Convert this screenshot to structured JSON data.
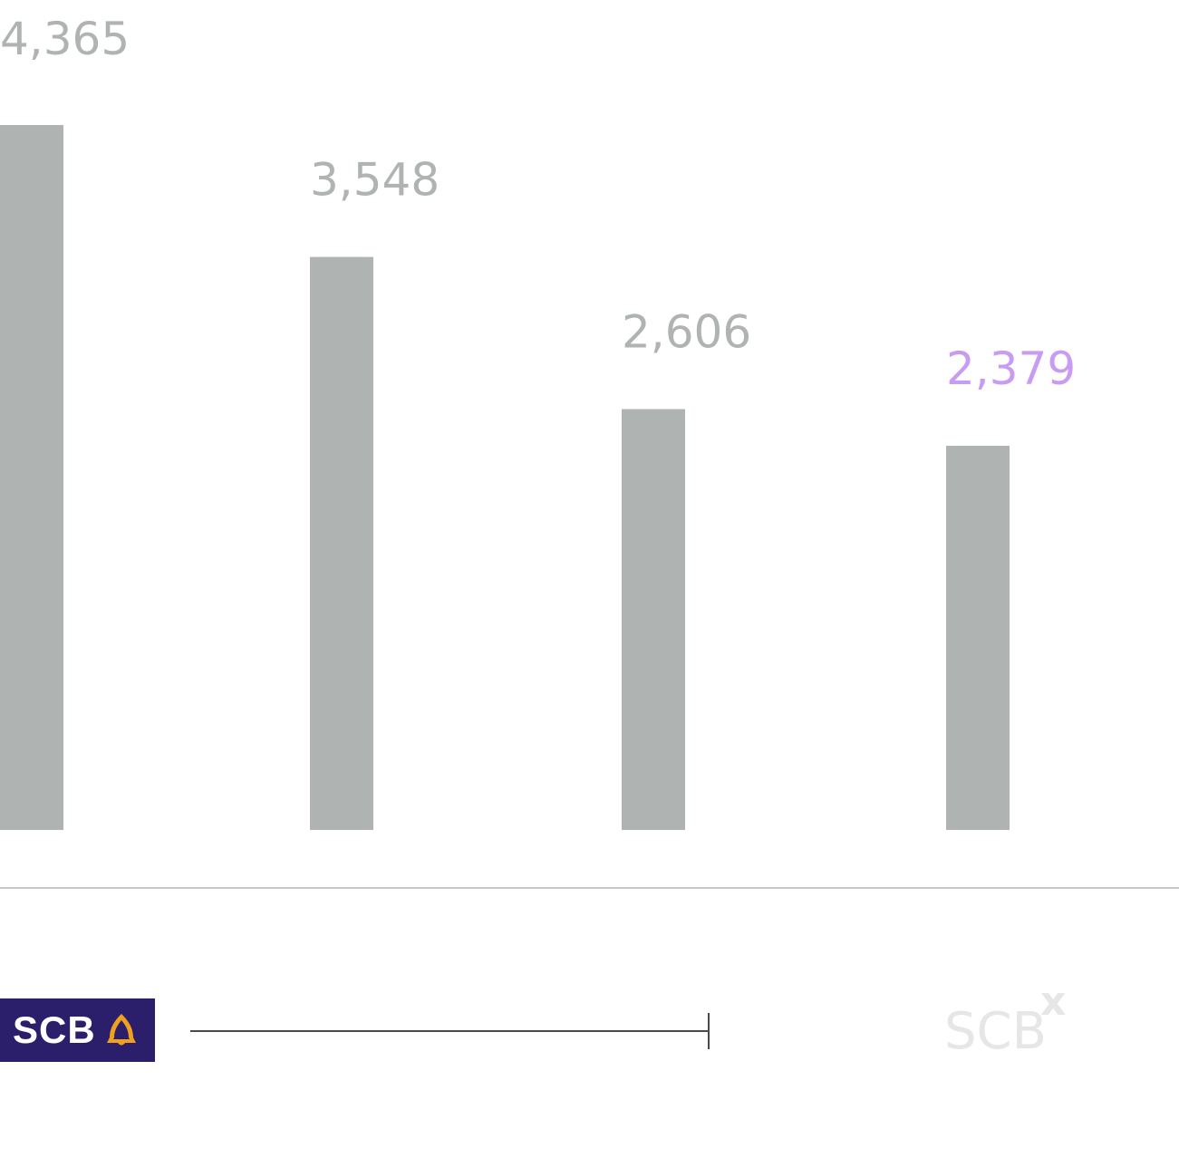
{
  "colors": {
    "bar": "#afb4b3",
    "label_default": "#afb4b3",
    "label_highlight": "#c89cf2",
    "axis_line": "#c8c8c8",
    "scale_line": "#4a4a4a",
    "scb_bg": "#2b1f6b",
    "scb_icon": "#f0a01e",
    "scbx": "#e6e6e6"
  },
  "chart_data": {
    "type": "bar",
    "categories": [
      "",
      "",
      "",
      ""
    ],
    "values": [
      4365,
      3548,
      2606,
      2379
    ],
    "value_labels": [
      "4,365",
      "3,548",
      "2,606",
      "2,379"
    ],
    "highlight_index": 3,
    "title": "",
    "xlabel": "",
    "ylabel": "",
    "ylim": [
      0,
      4365
    ],
    "grid": false,
    "legend": "none"
  },
  "logos": {
    "scb": {
      "text": "SCB",
      "icon": "bell-icon"
    },
    "scbx": {
      "text": "SCB",
      "superscript": "x"
    }
  }
}
